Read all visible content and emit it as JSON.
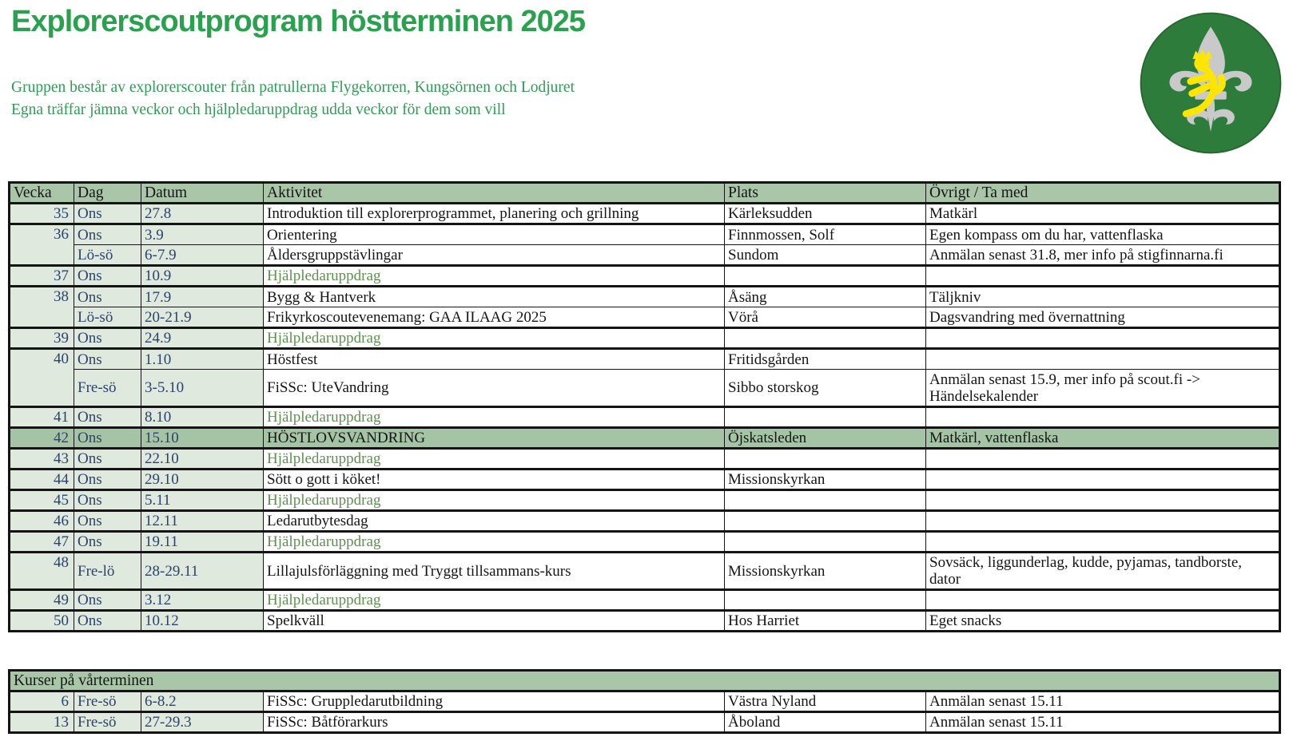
{
  "header": {
    "title": "Explorerscoutprogram höstterminen 2025",
    "subtitle1": "Gruppen består av explorerscouter från patrullerna Flygekorren, Kungsörnen och Lodjuret",
    "subtitle2": "Egna träffar jämna veckor och hjälpledaruppdrag udda veckor för dem som vill"
  },
  "logo": {
    "name": "finnish-scout-emblem",
    "circle_color": "#2e7c3c",
    "fleur_color": "#c9c9c9",
    "lion_color": "#ffe600"
  },
  "colors": {
    "title_green": "#2aa14e",
    "subtitle_green": "#2f9c55",
    "header_bg": "#a9c6a9",
    "row_tint": "#dfe9de",
    "highlight_bg": "#a5c4a5",
    "week_number": "#2d4269",
    "hjalpledar_green": "#5e9150",
    "border": "#141414"
  },
  "schedule_table": {
    "headers": [
      "Vecka",
      "Dag",
      "Datum",
      "Aktivitet",
      "Plats",
      "Övrigt / Ta med"
    ],
    "rows": [
      {
        "vecka": "35",
        "rowspan": 1,
        "dag": "Ons",
        "datum": "27.8",
        "aktivitet": "Introduktion till explorerprogrammet, planering och grillning",
        "plats": "Kärleksudden",
        "ovrigt": "Matkärl"
      },
      {
        "vecka": "36",
        "rowspan": 2,
        "dag": "Ons",
        "datum": "3.9",
        "aktivitet": "Orientering",
        "plats": "Finnmossen, Solf",
        "ovrigt": "Egen kompass om du har, vattenflaska"
      },
      {
        "vecka": "",
        "cont": true,
        "dag": "Lö-sö",
        "datum": "6-7.9",
        "aktivitet": "Åldersgruppstävlingar",
        "plats": "Sundom",
        "ovrigt": "Anmälan senast 31.8, mer info på stigfinnarna.fi"
      },
      {
        "vecka": "37",
        "rowspan": 1,
        "dag": "Ons",
        "datum": "10.9",
        "aktivitet": "Hjälpledaruppdrag",
        "green": true,
        "plats": "",
        "ovrigt": ""
      },
      {
        "vecka": "38",
        "rowspan": 2,
        "dag": "Ons",
        "datum": "17.9",
        "aktivitet": "Bygg & Hantverk",
        "plats": "Åsäng",
        "ovrigt": "Täljkniv"
      },
      {
        "vecka": "",
        "cont": true,
        "dag": "Lö-sö",
        "datum": "20-21.9",
        "aktivitet": "Frikyrkoscoutevenemang: GAA ILAAG 2025",
        "plats": "Vörå",
        "ovrigt": "Dagsvandring med övernattning"
      },
      {
        "vecka": "39",
        "rowspan": 1,
        "dag": "Ons",
        "datum": "24.9",
        "aktivitet": "Hjälpledaruppdrag",
        "green": true,
        "plats": "",
        "ovrigt": ""
      },
      {
        "vecka": "40",
        "rowspan": 2,
        "dag": "Ons",
        "datum": "1.10",
        "aktivitet": "Höstfest",
        "plats": "Fritidsgården",
        "ovrigt": ""
      },
      {
        "vecka": "",
        "cont": true,
        "tall": true,
        "dag": "Fre-sö",
        "datum": "3-5.10",
        "aktivitet": "FiSSc: UteVandring",
        "plats": "Sibbo storskog",
        "ovrigt": "Anmälan senast 15.9, mer info på scout.fi -> Händelsekalender"
      },
      {
        "vecka": "41",
        "rowspan": 1,
        "dag": "Ons",
        "datum": "8.10",
        "aktivitet": "Hjälpledaruppdrag",
        "green": true,
        "plats": "",
        "ovrigt": ""
      },
      {
        "vecka": "42",
        "rowspan": 1,
        "highlight": true,
        "dag": "Ons",
        "datum": "15.10",
        "aktivitet": "HÖSTLOVSVANDRING",
        "plats": "Öjskatsleden",
        "ovrigt": "Matkärl, vattenflaska"
      },
      {
        "vecka": "43",
        "rowspan": 1,
        "dag": "Ons",
        "datum": "22.10",
        "aktivitet": "Hjälpledaruppdrag",
        "green": true,
        "plats": "",
        "ovrigt": ""
      },
      {
        "vecka": "44",
        "rowspan": 1,
        "dag": "Ons",
        "datum": "29.10",
        "aktivitet": "Sött o gott i köket!",
        "plats": "Missionskyrkan",
        "ovrigt": ""
      },
      {
        "vecka": "45",
        "rowspan": 1,
        "dag": "Ons",
        "datum": "5.11",
        "aktivitet": "Hjälpledaruppdrag",
        "green": true,
        "plats": "",
        "ovrigt": ""
      },
      {
        "vecka": "46",
        "rowspan": 1,
        "dag": "Ons",
        "datum": "12.11",
        "aktivitet": "Ledarutbytesdag",
        "plats": "",
        "ovrigt": ""
      },
      {
        "vecka": "47",
        "rowspan": 1,
        "dag": "Ons",
        "datum": "19.11",
        "aktivitet": "Hjälpledaruppdrag",
        "green": true,
        "plats": "",
        "ovrigt": ""
      },
      {
        "vecka": "48",
        "rowspan": 1,
        "tall": true,
        "dag": "Fre-lö",
        "datum": "28-29.11",
        "aktivitet": "Lillajulsförläggning med Tryggt tillsammans-kurs",
        "plats": "Missionskyrkan",
        "ovrigt": "Sovsäck, liggunderlag, kudde, pyjamas, tandborste, dator"
      },
      {
        "vecka": "49",
        "rowspan": 1,
        "dag": "Ons",
        "datum": "3.12",
        "aktivitet": "Hjälpledaruppdrag",
        "green": true,
        "plats": "",
        "ovrigt": ""
      },
      {
        "vecka": "50",
        "rowspan": 1,
        "dag": "Ons",
        "datum": "10.12",
        "aktivitet": "Spelkväll",
        "plats": "Hos Harriet",
        "ovrigt": "Eget snacks"
      }
    ]
  },
  "courses_table": {
    "title": "Kurser på vårterminen",
    "rows": [
      {
        "vecka": "6",
        "rowspan": 1,
        "dag": "Fre-sö",
        "datum": "6-8.2",
        "aktivitet": "FiSSc: Gruppledarutbildning",
        "plats": "Västra Nyland",
        "ovrigt": "Anmälan senast 15.11"
      },
      {
        "vecka": "13",
        "rowspan": 1,
        "dag": "Fre-sö",
        "datum": "27-29.3",
        "aktivitet": "FiSSc: Båtförarkurs",
        "plats": "Åboland",
        "ovrigt": "Anmälan senast 15.11"
      }
    ]
  }
}
